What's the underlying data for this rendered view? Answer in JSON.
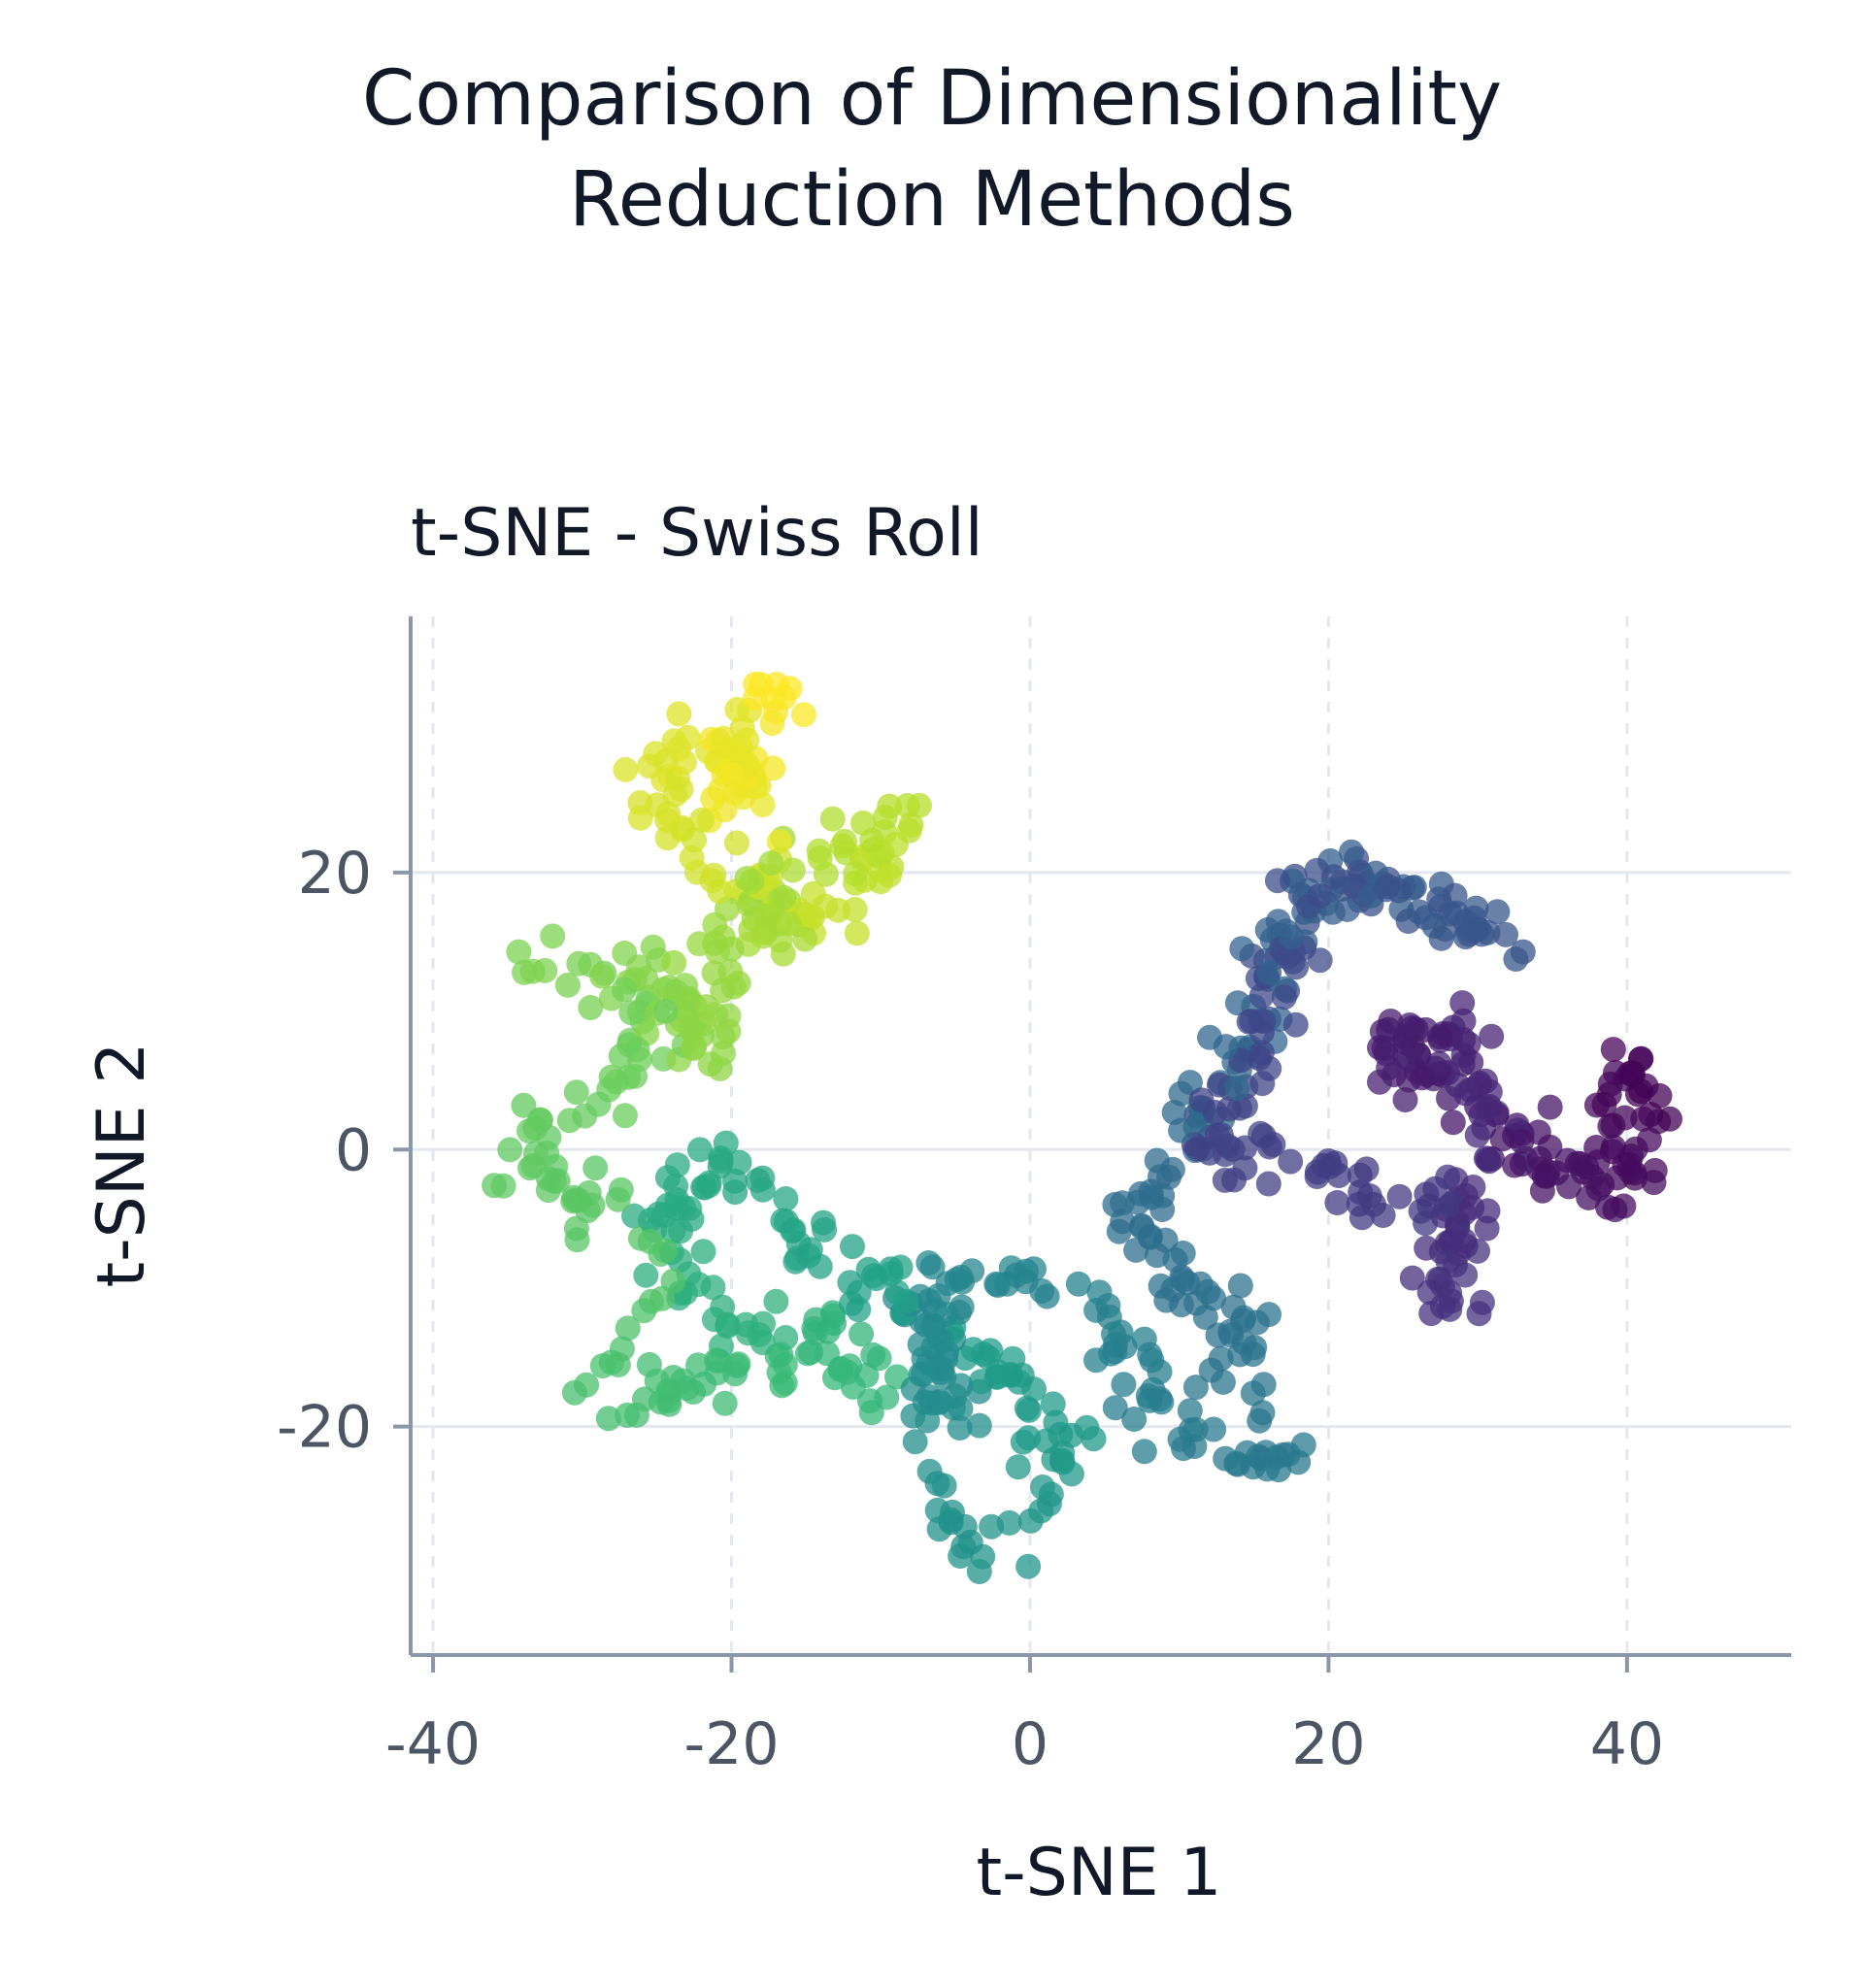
{
  "title_lines": [
    "Comparison of Dimensionality",
    "Reduction Methods"
  ],
  "chart_data": {
    "type": "scatter",
    "title": "t-SNE - Swiss Roll",
    "xlabel": "t-SNE 1",
    "ylabel": "t-SNE 2",
    "xlim": [
      -41.5,
      51
    ],
    "ylim": [
      -36.5,
      38.5
    ],
    "xticks": [
      -40,
      -20,
      0,
      20,
      40
    ],
    "xtick_labels": [
      "-40",
      "-20",
      "0",
      "20",
      "40"
    ],
    "yticks": [
      -20,
      0,
      20
    ],
    "ytick_labels": [
      "-20",
      "0",
      "20"
    ],
    "grid": true,
    "colormap": "viridis",
    "colormap_stops": [
      "#440154",
      "#482878",
      "#3e4989",
      "#31688e",
      "#26828e",
      "#1f9e89",
      "#35b779",
      "#6ece58",
      "#b5de2b",
      "#fde725"
    ],
    "marker_opacity": 0.75,
    "color_by": "t",
    "curve_t_range": [
      0,
      1
    ],
    "points_per_unit_t": 1000,
    "point_jitter": 1.1,
    "backbone": [
      [
        43.0,
        1.0
      ],
      [
        41.0,
        6.0
      ],
      [
        38.0,
        4.5
      ],
      [
        40.0,
        0.0
      ],
      [
        41.5,
        -3.0
      ],
      [
        36.0,
        -1.5
      ],
      [
        32.0,
        2.0
      ],
      [
        28.0,
        4.5
      ],
      [
        24.0,
        9.0
      ],
      [
        26.0,
        5.0
      ],
      [
        29.0,
        8.5
      ],
      [
        31.0,
        0.0
      ],
      [
        29.0,
        -5.0
      ],
      [
        27.0,
        -10.0
      ],
      [
        29.0,
        -12.0
      ],
      [
        28.0,
        -4.0
      ],
      [
        24.0,
        -4.0
      ],
      [
        20.0,
        -2.5
      ],
      [
        17.0,
        -1.0
      ],
      [
        13.0,
        0.0
      ],
      [
        11.0,
        2.0
      ],
      [
        14.0,
        4.0
      ],
      [
        16.0,
        10.0
      ],
      [
        17.0,
        16.0
      ],
      [
        20.0,
        20.0
      ],
      [
        24.0,
        18.5
      ],
      [
        28.0,
        17.0
      ],
      [
        32.0,
        15.0
      ],
      [
        29.0,
        16.5
      ],
      [
        25.0,
        18.5
      ],
      [
        20.0,
        19.0
      ],
      [
        17.0,
        17.0
      ],
      [
        16.0,
        12.0
      ],
      [
        14.0,
        7.0
      ],
      [
        11.0,
        2.0
      ],
      [
        8.0,
        -3.0
      ],
      [
        6.0,
        -5.0
      ],
      [
        9.0,
        -8.0
      ],
      [
        12.0,
        -10.0
      ],
      [
        14.0,
        -14.0
      ],
      [
        15.0,
        -20.0
      ],
      [
        17.0,
        -22.0
      ],
      [
        14.0,
        -23.0
      ],
      [
        11.0,
        -21.0
      ],
      [
        8.0,
        -18.0
      ],
      [
        6.0,
        -13.0
      ],
      [
        2.0,
        -11.0
      ],
      [
        -2.0,
        -9.0
      ],
      [
        -5.0,
        -11.0
      ],
      [
        -7.0,
        -10.0
      ],
      [
        -5.0,
        -13.0
      ],
      [
        -7.0,
        -16.0
      ],
      [
        -5.0,
        -20.0
      ],
      [
        -5.0,
        -25.0
      ],
      [
        -6.0,
        -28.0
      ],
      [
        -3.0,
        -29.0
      ],
      [
        0.0,
        -28.0
      ],
      [
        1.0,
        -24.0
      ],
      [
        2.0,
        -21.0
      ],
      [
        -1.0,
        -18.0
      ],
      [
        -4.0,
        -14.0
      ],
      [
        -7.0,
        -12.0
      ],
      [
        -10.0,
        -10.0
      ],
      [
        -13.0,
        -8.0
      ],
      [
        -16.0,
        -6.0
      ],
      [
        -19.0,
        -3.0
      ],
      [
        -20.0,
        0.0
      ],
      [
        -23.0,
        -2.0
      ],
      [
        -25.0,
        -6.0
      ],
      [
        -24.0,
        -10.0
      ],
      [
        -20.0,
        -13.0
      ],
      [
        -16.0,
        -12.0
      ],
      [
        -12.0,
        -14.0
      ],
      [
        -10.0,
        -17.0
      ],
      [
        -15.0,
        -15.0
      ],
      [
        -20.0,
        -16.0
      ],
      [
        -24.0,
        -17.0
      ],
      [
        -28.0,
        -19.0
      ],
      [
        -29.0,
        -16.0
      ],
      [
        -26.0,
        -12.0
      ],
      [
        -25.0,
        -8.0
      ],
      [
        -29.0,
        -4.0
      ],
      [
        -33.0,
        -2.0
      ],
      [
        -34.0,
        1.0
      ],
      [
        -30.0,
        2.0
      ],
      [
        -27.0,
        5.0
      ],
      [
        -25.0,
        9.0
      ],
      [
        -28.0,
        11.5
      ],
      [
        -31.0,
        13.0
      ],
      [
        -33.0,
        14.0
      ],
      [
        -29.0,
        13.0
      ],
      [
        -24.0,
        11.0
      ],
      [
        -22.0,
        7.0
      ],
      [
        -21.0,
        12.0
      ],
      [
        -20.0,
        17.0
      ],
      [
        -18.0,
        20.0
      ],
      [
        -17.0,
        15.0
      ],
      [
        -16.0,
        19.0
      ],
      [
        -13.0,
        21.0
      ],
      [
        -10.0,
        22.5
      ],
      [
        -8.5,
        24.0
      ],
      [
        -10.0,
        20.0
      ],
      [
        -13.0,
        17.0
      ],
      [
        -16.0,
        18.0
      ],
      [
        -19.0,
        19.5
      ],
      [
        -22.0,
        22.0
      ],
      [
        -24.0,
        25.0
      ],
      [
        -25.5,
        27.5
      ],
      [
        -22.0,
        29.5
      ],
      [
        -20.0,
        30.5
      ],
      [
        -19.0,
        26.0
      ],
      [
        -21.0,
        24.0
      ],
      [
        -19.0,
        28.0
      ],
      [
        -18.0,
        33.0
      ],
      [
        -15.5,
        32.5
      ]
    ]
  }
}
